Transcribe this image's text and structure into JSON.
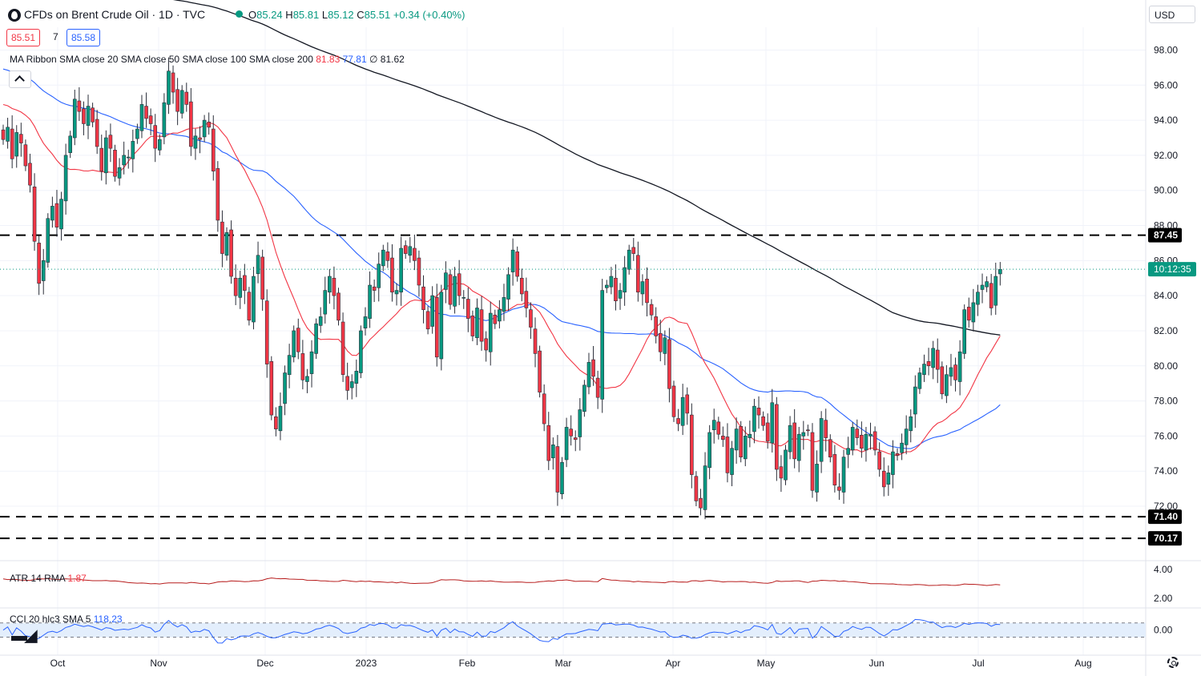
{
  "header": {
    "title": "CFDs on Brent Crude Oil · 1D · TVC",
    "ohlc": {
      "o_label": "O",
      "o": "85.24",
      "h_label": "H",
      "h": "85.81",
      "l_label": "L",
      "l": "85.12",
      "c_label": "C",
      "c": "85.51",
      "change": "+0.34 (+0.40%)"
    },
    "sell_price": "85.51",
    "spread": "7",
    "buy_price": "85.58"
  },
  "indicators": {
    "ma_ribbon": {
      "label": "MA Ribbon SMA close 20 SMA close 50 SMA close 100 SMA close 200",
      "v20": "81.83",
      "v50": "77.81",
      "v100": "∅",
      "v200": "81.62"
    },
    "atr": {
      "label": "ATR 14 RMA",
      "value": "1.87"
    },
    "cci": {
      "label": "CCI 20 hlc3 SMA 5",
      "value": "118.23"
    }
  },
  "toolbar": {
    "currency": "USD"
  },
  "colors": {
    "up": "#089981",
    "down": "#f23645",
    "sma20": "#f23645",
    "sma50": "#2962ff",
    "sma200": "#131722",
    "atr": "#b71c1c",
    "cci": "#2962ff",
    "cci_band": "#e3eefc"
  },
  "chart_data": {
    "type": "candlestick",
    "price_axis": {
      "ticks": [
        "98.00",
        "96.00",
        "94.00",
        "92.00",
        "90.00",
        "88.00",
        "86.00",
        "84.00",
        "82.00",
        "80.00",
        "78.00",
        "76.00",
        "74.00",
        "72.00"
      ],
      "ylim": [
        69.9,
        99.3
      ]
    },
    "time_axis": {
      "labels": [
        "Oct",
        "Nov",
        "Dec",
        "2023",
        "Feb",
        "Mar",
        "Apr",
        "May",
        "Jun",
        "Jul",
        "Aug"
      ]
    },
    "horizontal_levels": [
      {
        "value": 87.45,
        "label": "87.45"
      },
      {
        "value": 71.4,
        "label": "71.40"
      },
      {
        "value": 70.17,
        "label": "70.17"
      }
    ],
    "last_price": {
      "value": 85.51,
      "countdown": "10:12:35"
    },
    "close_series": [
      92.9,
      93.6,
      91.8,
      93.3,
      92.7,
      91.4,
      90.3,
      87.1,
      84.7,
      86.0,
      88.4,
      89.1,
      87.9,
      89.5,
      92.0,
      93.1,
      95.2,
      94.5,
      93.8,
      94.8,
      93.9,
      92.5,
      91.1,
      93.0,
      92.4,
      90.8,
      91.3,
      92.0,
      91.9,
      92.8,
      93.5,
      94.9,
      94.1,
      93.8,
      92.4,
      92.9,
      95.0,
      96.8,
      95.6,
      94.5,
      95.7,
      94.9,
      92.5,
      93.1,
      92.9,
      94.0,
      93.6,
      91.1,
      88.3,
      86.4,
      87.6,
      85.1,
      84.0,
      85.0,
      84.3,
      82.6,
      85.1,
      86.3,
      83.8,
      80.1,
      77.2,
      76.4,
      77.7,
      79.6,
      80.6,
      82.0,
      80.8,
      79.2,
      79.4,
      80.8,
      82.4,
      82.8,
      84.3,
      85.1,
      84.0,
      82.6,
      79.5,
      78.6,
      79.1,
      79.7,
      82.0,
      82.8,
      84.6,
      84.3,
      85.8,
      86.6,
      86.0,
      84.2,
      84.3,
      86.7,
      86.4,
      86.8,
      86.0,
      84.6,
      83.2,
      82.1,
      84.0,
      80.5,
      84.2,
      85.3,
      83.5,
      85.1,
      84.0,
      83.9,
      82.7,
      81.7,
      83.3,
      81.4,
      80.9,
      83.0,
      82.4,
      83.2,
      83.9,
      85.2,
      86.6,
      85.1,
      84.1,
      83.3,
      82.2,
      80.7,
      78.5,
      76.7,
      74.6,
      75.5,
      72.8,
      74.5,
      76.5,
      76.0,
      75.8,
      77.5,
      78.9,
      80.2,
      79.4,
      78.2,
      84.3,
      84.6,
      85.1,
      83.7,
      84.3,
      85.6,
      86.6,
      86.4,
      84.2,
      84.8,
      83.6,
      82.9,
      81.7,
      80.8,
      81.6,
      78.7,
      77.1,
      76.7,
      78.2,
      77.3,
      73.8,
      72.3,
      71.9,
      74.3,
      76.2,
      76.9,
      76.1,
      75.8,
      73.9,
      75.3,
      76.4,
      74.8,
      76.0,
      76.1,
      77.7,
      77.2,
      76.6,
      75.7,
      77.9,
      74.1,
      73.6,
      75.2,
      76.6,
      74.7,
      76.1,
      76.2,
      76.3,
      72.9,
      74.4,
      77.0,
      75.9,
      74.8,
      73.2,
      72.9,
      74.8,
      75.3,
      76.5,
      75.9,
      75.3,
      76.1,
      76.1,
      75.2,
      74.1,
      73.1,
      73.9,
      75.1,
      74.9,
      75.6,
      76.4,
      77.1,
      78.8,
      79.6,
      80.1,
      80.0,
      81.0,
      79.8,
      78.4,
      79.5,
      79.9,
      79.2,
      80.8,
      83.2,
      82.6,
      83.6,
      84.2,
      84.6,
      84.8,
      83.3,
      85.1,
      85.5
    ]
  }
}
